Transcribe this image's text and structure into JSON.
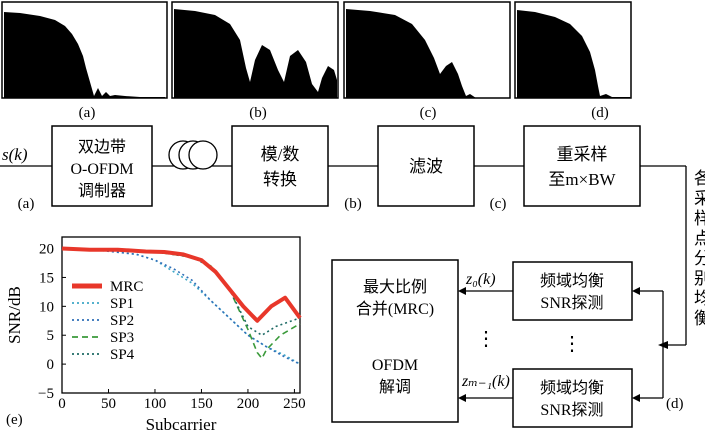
{
  "spectra": {
    "a": "(a)",
    "b": "(b)",
    "c": "(c)",
    "d": "(d)"
  },
  "chain": {
    "input_signal": "s(k)",
    "label_a": "(a)",
    "modulator": [
      "双边带",
      "O-OFDM",
      "调制器"
    ],
    "adc": [
      "模/数",
      "转换"
    ],
    "label_b": "(b)",
    "filter": "滤波",
    "label_c": "(c)",
    "resample": [
      "重采样",
      "至m×BW"
    ],
    "side_text": "各采样点分别均衡",
    "label_d": "(d)"
  },
  "receiver": {
    "mrc_block": [
      "最大比例",
      "合并(MRC)",
      "OFDM",
      "解调"
    ],
    "eq_block_top": [
      "频域均衡",
      "SNR探测"
    ],
    "eq_block_bottom": [
      "频域均衡",
      "SNR探测"
    ],
    "z0": "z₀(k)",
    "zm": "zₘ₋₁(k)",
    "dots": "⋮"
  },
  "chart_label": "(e)",
  "chart_data": {
    "type": "line",
    "xlabel": "Subcarrier",
    "ylabel": "SNR/dB",
    "xlim": [
      0,
      256
    ],
    "ylim": [
      -5,
      22
    ],
    "xticks": [
      0,
      50,
      100,
      150,
      200,
      250
    ],
    "yticks": [
      -5,
      0,
      5,
      10,
      15,
      20
    ],
    "legend_position": "left",
    "series": [
      {
        "name": "MRC",
        "color": "#e8372a",
        "style": "solid-thick",
        "x": [
          0,
          30,
          60,
          90,
          110,
          130,
          150,
          165,
          180,
          195,
          210,
          225,
          240,
          256
        ],
        "y": [
          20,
          19.8,
          19.8,
          19.5,
          19.4,
          19,
          18,
          16,
          13,
          10,
          7.5,
          10,
          11.5,
          8
        ]
      },
      {
        "name": "SP1",
        "color": "#3fa8c8",
        "style": "dotted",
        "x": [
          0,
          40,
          80,
          100,
          120,
          140,
          160,
          180,
          200,
          220,
          240,
          256
        ],
        "y": [
          20,
          19.8,
          19,
          18,
          16,
          14,
          11,
          8,
          5,
          3,
          1.5,
          0
        ]
      },
      {
        "name": "SP2",
        "color": "#2f6fb8",
        "style": "dotted",
        "x": [
          0,
          40,
          80,
          100,
          120,
          140,
          160,
          180,
          200,
          220,
          240,
          256
        ],
        "y": [
          20,
          19.7,
          19,
          18,
          16.5,
          14.5,
          11,
          8,
          5,
          3,
          1.2,
          0
        ]
      },
      {
        "name": "SP3",
        "color": "#3a9a3a",
        "style": "dashed",
        "x": [
          0,
          40,
          80,
          110,
          140,
          160,
          180,
          200,
          210,
          215,
          220,
          235,
          256
        ],
        "y": [
          20,
          19.8,
          19.6,
          19.2,
          18.5,
          17,
          13,
          6,
          2,
          1,
          2.5,
          5,
          7
        ]
      },
      {
        "name": "SP4",
        "color": "#1f6b66",
        "style": "dotted",
        "x": [
          0,
          40,
          80,
          110,
          140,
          160,
          180,
          200,
          215,
          230,
          256
        ],
        "y": [
          20,
          19.8,
          19.6,
          19.2,
          18.5,
          16.8,
          13,
          6.5,
          5,
          6.5,
          8
        ]
      }
    ]
  }
}
